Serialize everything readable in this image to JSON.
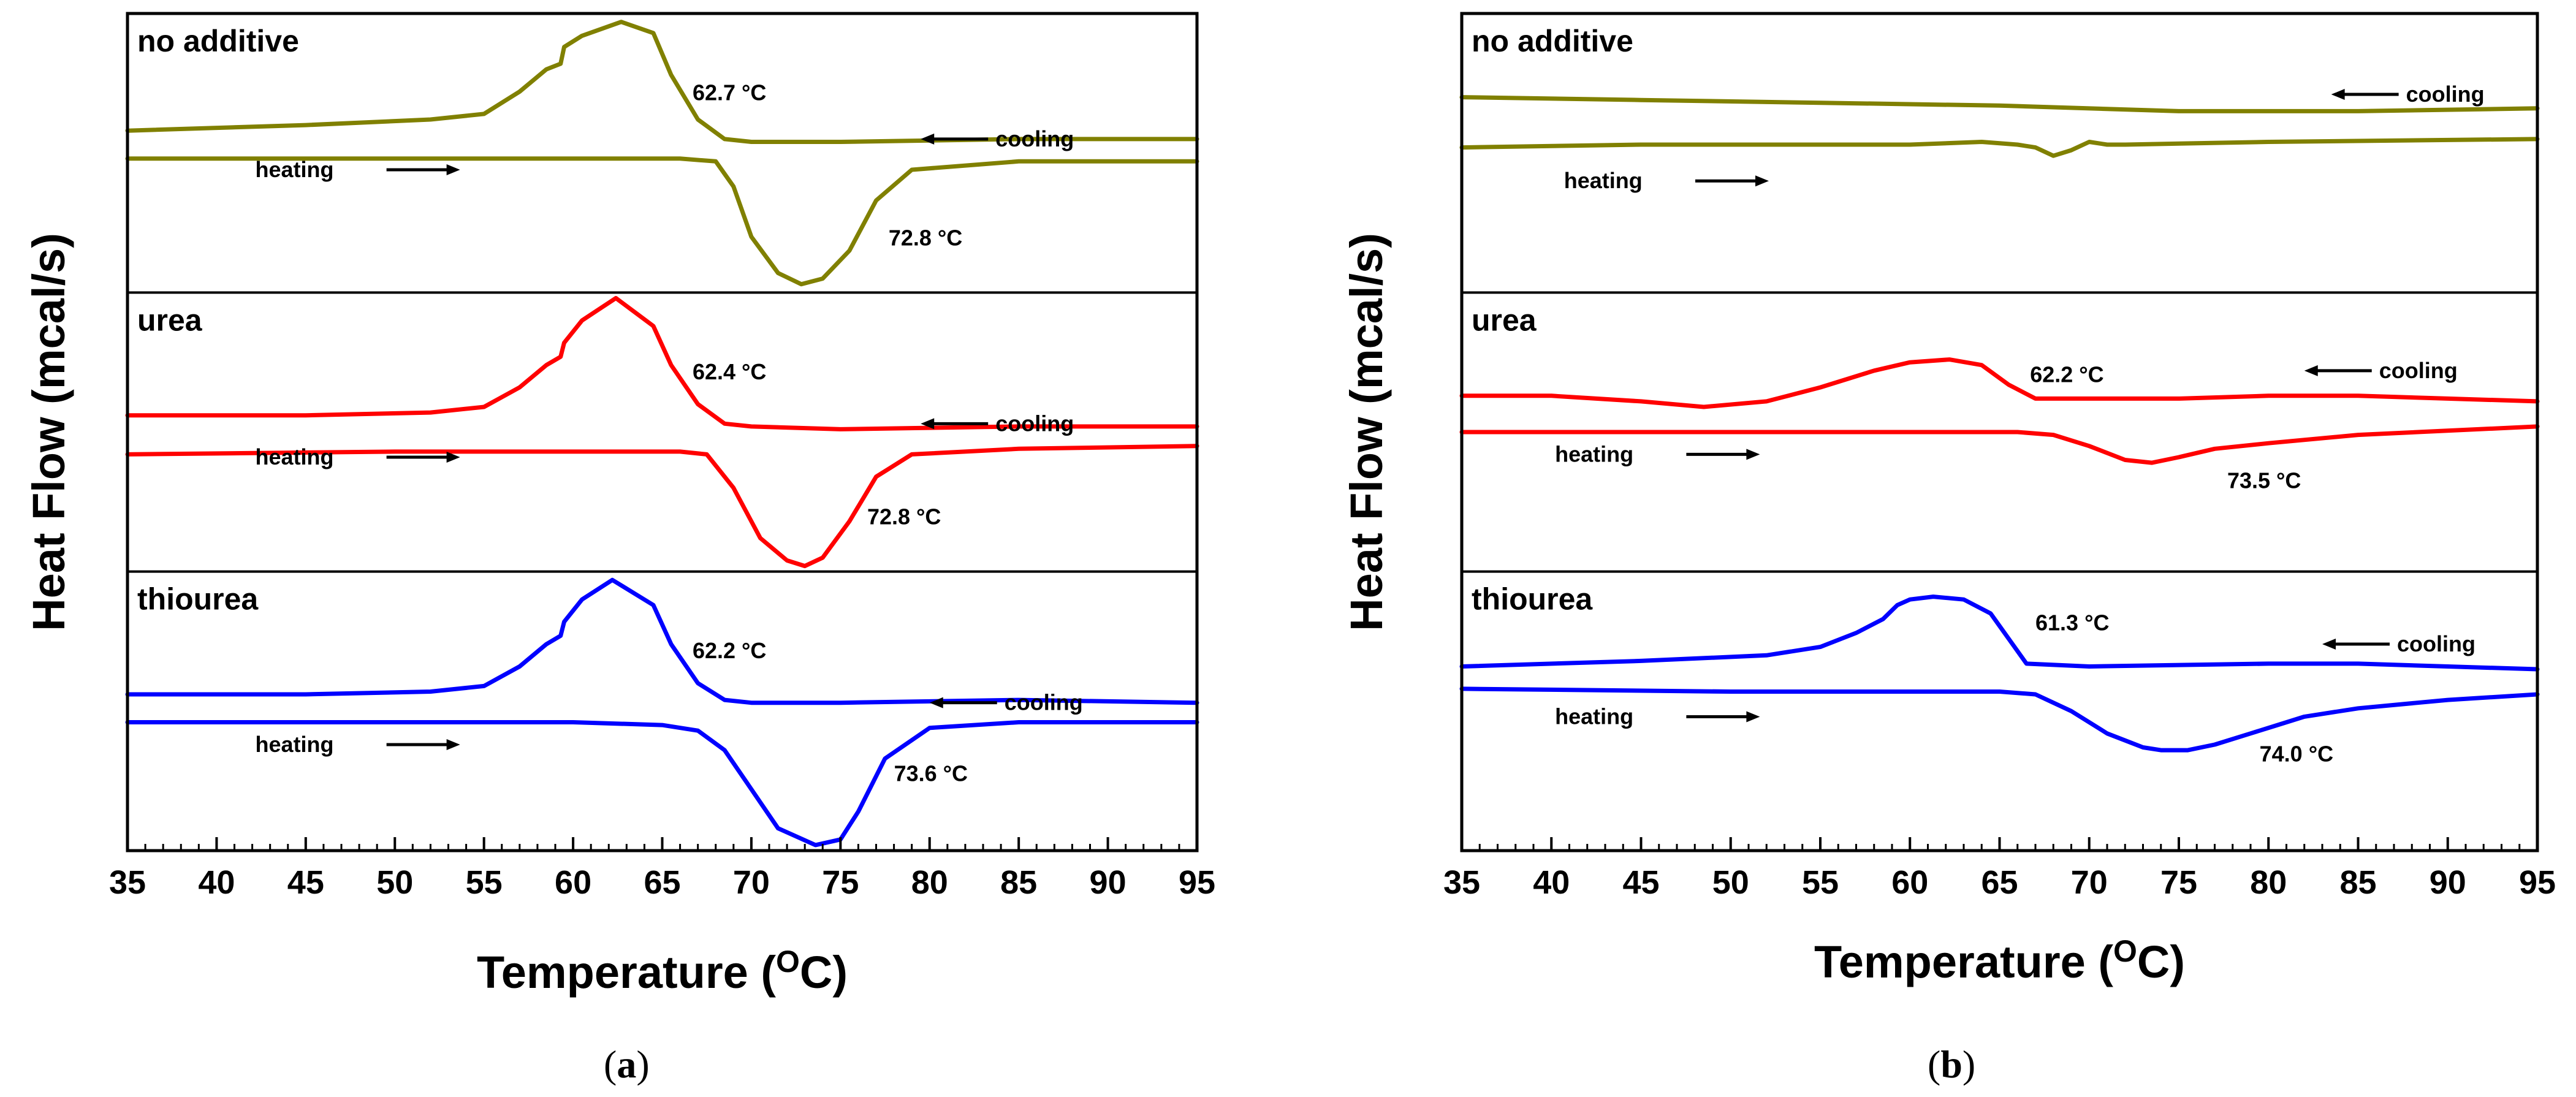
{
  "chart_data": [
    {
      "type": "line",
      "caption_letter": "a",
      "ylabel": "Heat Flow (mcal/s)",
      "xlabel": "Temperature (",
      "xlabel_unit_sup": "O",
      "xlabel_unit": "C)",
      "xlim": [
        35,
        95
      ],
      "xticks": [
        "35",
        "40",
        "45",
        "50",
        "55",
        "60",
        "65",
        "70",
        "75",
        "80",
        "85",
        "90",
        "95"
      ],
      "panels": [
        {
          "name": "no additive",
          "color": "#808000",
          "cooling_label": "cooling",
          "heating_label": "heating",
          "cooling_peak_label": "62.7 °C",
          "heating_peak_label": "72.8 °C",
          "series": [
            {
              "name": "cooling",
              "x": [
                35,
                45,
                52,
                55,
                57,
                58.5,
                59.3,
                59.5,
                60.5,
                62.7,
                64.5,
                65.5,
                67,
                68.5,
                70,
                75,
                85,
                95
              ],
              "y": [
                0.58,
                0.6,
                0.62,
                0.64,
                0.72,
                0.8,
                0.82,
                0.88,
                0.92,
                0.97,
                0.93,
                0.78,
                0.62,
                0.55,
                0.54,
                0.54,
                0.55,
                0.55
              ]
            },
            {
              "name": "heating",
              "x": [
                35,
                50,
                60,
                66,
                68,
                69,
                70,
                71.5,
                72.8,
                74,
                75.5,
                77,
                79,
                85,
                95
              ],
              "y": [
                0.48,
                0.48,
                0.48,
                0.48,
                0.47,
                0.38,
                0.2,
                0.07,
                0.03,
                0.05,
                0.15,
                0.33,
                0.44,
                0.47,
                0.47
              ]
            }
          ]
        },
        {
          "name": "urea",
          "color": "#ff0000",
          "cooling_label": "cooling",
          "heating_label": "heating",
          "cooling_peak_label": "62.4 °C",
          "heating_peak_label": "72.8 °C",
          "series": [
            {
              "name": "cooling",
              "x": [
                35,
                45,
                52,
                55,
                57,
                58.5,
                59.3,
                59.5,
                60.5,
                62.4,
                64.5,
                65.5,
                67,
                68.5,
                70,
                75,
                85,
                95
              ],
              "y": [
                0.56,
                0.56,
                0.57,
                0.59,
                0.66,
                0.74,
                0.77,
                0.82,
                0.9,
                0.98,
                0.88,
                0.74,
                0.6,
                0.53,
                0.52,
                0.51,
                0.52,
                0.52
              ]
            },
            {
              "name": "heating",
              "x": [
                35,
                50,
                60,
                66,
                67.5,
                69,
                70.5,
                72,
                73,
                74,
                75.5,
                77,
                79,
                85,
                95
              ],
              "y": [
                0.42,
                0.43,
                0.43,
                0.43,
                0.42,
                0.3,
                0.12,
                0.04,
                0.02,
                0.05,
                0.18,
                0.34,
                0.42,
                0.44,
                0.45
              ]
            }
          ]
        },
        {
          "name": "thiourea",
          "color": "#0000ff",
          "cooling_label": "cooling",
          "heating_label": "heating",
          "cooling_peak_label": "62.2 °C",
          "heating_peak_label": "73.6 °C",
          "series": [
            {
              "name": "cooling",
              "x": [
                35,
                45,
                52,
                55,
                57,
                58.5,
                59.3,
                59.5,
                60.5,
                62.2,
                64.5,
                65.5,
                67,
                68.5,
                70,
                75,
                85,
                95
              ],
              "y": [
                0.56,
                0.56,
                0.57,
                0.59,
                0.66,
                0.74,
                0.77,
                0.82,
                0.9,
                0.97,
                0.88,
                0.74,
                0.6,
                0.54,
                0.53,
                0.53,
                0.54,
                0.53
              ]
            },
            {
              "name": "heating",
              "x": [
                35,
                50,
                60,
                65,
                67,
                68.5,
                70,
                71.5,
                73.6,
                75,
                76,
                77.5,
                80,
                85,
                95
              ],
              "y": [
                0.46,
                0.46,
                0.46,
                0.45,
                0.43,
                0.36,
                0.22,
                0.08,
                0.02,
                0.04,
                0.14,
                0.33,
                0.44,
                0.46,
                0.46
              ]
            }
          ]
        }
      ]
    },
    {
      "type": "line",
      "caption_letter": "b",
      "ylabel": "Heat Flow (mcal/s)",
      "xlabel": "Temperature (",
      "xlabel_unit_sup": "O",
      "xlabel_unit": "C)",
      "xlim": [
        35,
        95
      ],
      "xticks": [
        "35",
        "40",
        "45",
        "50",
        "55",
        "60",
        "65",
        "70",
        "75",
        "80",
        "85",
        "90",
        "95"
      ],
      "panels": [
        {
          "name": "no additive",
          "color": "#808000",
          "cooling_label": "cooling",
          "heating_label": "heating",
          "cooling_peak_label": "",
          "heating_peak_label": "",
          "series": [
            {
              "name": "cooling",
              "x": [
                35,
                45,
                55,
                65,
                75,
                85,
                95
              ],
              "y": [
                0.7,
                0.69,
                0.68,
                0.67,
                0.65,
                0.65,
                0.66
              ]
            },
            {
              "name": "heating",
              "x": [
                35,
                45,
                55,
                60,
                64,
                66,
                67,
                68,
                69,
                70,
                71,
                72,
                80,
                95
              ],
              "y": [
                0.52,
                0.53,
                0.53,
                0.53,
                0.54,
                0.53,
                0.52,
                0.49,
                0.51,
                0.54,
                0.53,
                0.53,
                0.54,
                0.55
              ]
            }
          ]
        },
        {
          "name": "urea",
          "color": "#ff0000",
          "cooling_label": "cooling",
          "heating_label": "heating",
          "cooling_peak_label": "62.2 °C",
          "heating_peak_label": "73.5 °C",
          "series": [
            {
              "name": "cooling",
              "x": [
                35,
                40,
                45,
                48.5,
                52,
                55,
                58,
                60,
                62.2,
                64,
                65.5,
                67,
                70,
                75,
                80,
                85,
                90,
                95
              ],
              "y": [
                0.63,
                0.63,
                0.61,
                0.59,
                0.61,
                0.66,
                0.72,
                0.75,
                0.76,
                0.74,
                0.67,
                0.62,
                0.62,
                0.62,
                0.63,
                0.63,
                0.62,
                0.61
              ]
            },
            {
              "name": "heating",
              "x": [
                35,
                50,
                60,
                66,
                68,
                70,
                72,
                73.5,
                75,
                77,
                80,
                85,
                95
              ],
              "y": [
                0.5,
                0.5,
                0.5,
                0.5,
                0.49,
                0.45,
                0.4,
                0.39,
                0.41,
                0.44,
                0.46,
                0.49,
                0.52
              ]
            }
          ]
        },
        {
          "name": "thiourea",
          "color": "#0000ff",
          "cooling_label": "cooling",
          "heating_label": "heating",
          "cooling_peak_label": "61.3 °C",
          "heating_peak_label": "74.0 °C",
          "series": [
            {
              "name": "cooling",
              "x": [
                35,
                45,
                52,
                55,
                57,
                58.5,
                59.3,
                60,
                61.3,
                63,
                64.5,
                65.5,
                66.5,
                70,
                80,
                85,
                90,
                95
              ],
              "y": [
                0.66,
                0.68,
                0.7,
                0.73,
                0.78,
                0.83,
                0.88,
                0.9,
                0.91,
                0.9,
                0.85,
                0.76,
                0.67,
                0.66,
                0.67,
                0.67,
                0.66,
                0.65
              ]
            },
            {
              "name": "heating",
              "x": [
                35,
                50,
                60,
                65,
                67,
                69,
                71,
                73,
                74,
                75.5,
                77,
                79,
                80.5,
                82,
                85,
                90,
                95
              ],
              "y": [
                0.58,
                0.57,
                0.57,
                0.57,
                0.56,
                0.5,
                0.42,
                0.37,
                0.36,
                0.36,
                0.38,
                0.42,
                0.45,
                0.48,
                0.51,
                0.54,
                0.56
              ]
            }
          ]
        }
      ]
    }
  ]
}
